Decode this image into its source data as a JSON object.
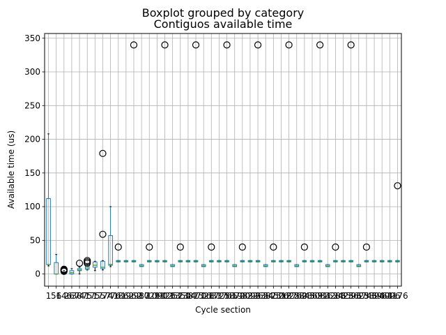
{
  "chart_data": {
    "type": "box",
    "suptitle": "Boxplot grouped by category",
    "title": "Contiguos available time",
    "xlabel": "Cycle section",
    "ylabel": "Available time (us)",
    "ylim": [
      -18,
      357
    ],
    "yticks": [
      0,
      50,
      100,
      150,
      200,
      250,
      300,
      350
    ],
    "grid": true,
    "categories": [
      "1",
      "56",
      "146",
      "267",
      "387",
      "417",
      "517",
      "557",
      "741",
      "761",
      "862",
      "962",
      "987",
      "1029",
      "1090",
      "1126",
      "1252",
      "1350",
      "1387",
      "1470",
      "1528",
      "1633",
      "1725",
      "1765",
      "1870",
      "1983",
      "2096",
      "2265",
      "2387",
      "2450",
      "2518",
      "2625",
      "2760",
      "2845",
      "2869",
      "3034",
      "3162",
      "3286",
      "3425",
      "3596",
      "3625",
      "3746",
      "3896",
      "3963",
      "4096",
      "4176"
    ],
    "boxes": [
      {
        "q1": 14,
        "median": 14,
        "q3": 112,
        "lo": 12,
        "hi": 208,
        "outliers": []
      },
      {
        "q1": 0,
        "median": 0,
        "q3": 17,
        "lo": 0,
        "hi": 29,
        "outliers": []
      },
      {
        "q1": 0,
        "median": 1,
        "q3": 3,
        "lo": 0,
        "hi": 5,
        "outliers": [
          4,
          5,
          6,
          7
        ]
      },
      {
        "q1": 0,
        "median": 2,
        "q3": 5,
        "lo": 0,
        "hi": 8,
        "outliers": []
      },
      {
        "q1": 5,
        "median": 6,
        "q3": 8,
        "lo": 0,
        "hi": 10,
        "outliers": [
          16
        ]
      },
      {
        "q1": 7,
        "median": 9,
        "q3": 12,
        "lo": 6,
        "hi": 14,
        "outliers": [
          16,
          18,
          20
        ]
      },
      {
        "q1": 10,
        "median": 13,
        "q3": 18,
        "lo": 5,
        "hi": 19,
        "outliers": []
      },
      {
        "q1": 8,
        "median": 10,
        "q3": 19,
        "lo": 6,
        "hi": 20,
        "outliers": [
          59,
          179
        ]
      },
      {
        "q1": 13,
        "median": 14,
        "q3": 57,
        "lo": 11,
        "hi": 100,
        "outliers": []
      },
      {
        "q1": 18,
        "median": 19,
        "q3": 20,
        "lo": 18,
        "hi": 20,
        "outliers": [
          40
        ]
      },
      {
        "q1": 18,
        "median": 19,
        "q3": 20,
        "lo": 18,
        "hi": 20,
        "outliers": []
      },
      {
        "q1": 18,
        "median": 19,
        "q3": 20,
        "lo": 18,
        "hi": 20,
        "outliers": [
          340
        ]
      },
      {
        "q1": 11,
        "median": 12,
        "q3": 14,
        "lo": 11,
        "hi": 14,
        "outliers": []
      },
      {
        "q1": 18,
        "median": 19,
        "q3": 20,
        "lo": 18,
        "hi": 20,
        "outliers": [
          40
        ]
      },
      {
        "q1": 18,
        "median": 19,
        "q3": 20,
        "lo": 18,
        "hi": 20,
        "outliers": []
      },
      {
        "q1": 18,
        "median": 19,
        "q3": 20,
        "lo": 18,
        "hi": 20,
        "outliers": [
          340
        ]
      },
      {
        "q1": 11,
        "median": 12,
        "q3": 14,
        "lo": 11,
        "hi": 14,
        "outliers": []
      },
      {
        "q1": 18,
        "median": 19,
        "q3": 20,
        "lo": 18,
        "hi": 20,
        "outliers": [
          40
        ]
      },
      {
        "q1": 18,
        "median": 19,
        "q3": 20,
        "lo": 18,
        "hi": 20,
        "outliers": []
      },
      {
        "q1": 18,
        "median": 19,
        "q3": 20,
        "lo": 18,
        "hi": 20,
        "outliers": [
          340
        ]
      },
      {
        "q1": 11,
        "median": 12,
        "q3": 14,
        "lo": 11,
        "hi": 14,
        "outliers": []
      },
      {
        "q1": 18,
        "median": 19,
        "q3": 20,
        "lo": 18,
        "hi": 20,
        "outliers": [
          40
        ]
      },
      {
        "q1": 18,
        "median": 19,
        "q3": 20,
        "lo": 18,
        "hi": 20,
        "outliers": []
      },
      {
        "q1": 18,
        "median": 19,
        "q3": 20,
        "lo": 18,
        "hi": 20,
        "outliers": [
          340
        ]
      },
      {
        "q1": 11,
        "median": 12,
        "q3": 14,
        "lo": 11,
        "hi": 14,
        "outliers": []
      },
      {
        "q1": 18,
        "median": 19,
        "q3": 20,
        "lo": 18,
        "hi": 20,
        "outliers": [
          40
        ]
      },
      {
        "q1": 18,
        "median": 19,
        "q3": 20,
        "lo": 18,
        "hi": 20,
        "outliers": []
      },
      {
        "q1": 18,
        "median": 19,
        "q3": 20,
        "lo": 18,
        "hi": 20,
        "outliers": [
          340
        ]
      },
      {
        "q1": 11,
        "median": 12,
        "q3": 14,
        "lo": 11,
        "hi": 14,
        "outliers": []
      },
      {
        "q1": 18,
        "median": 19,
        "q3": 20,
        "lo": 18,
        "hi": 20,
        "outliers": [
          40
        ]
      },
      {
        "q1": 18,
        "median": 19,
        "q3": 20,
        "lo": 18,
        "hi": 20,
        "outliers": []
      },
      {
        "q1": 18,
        "median": 19,
        "q3": 20,
        "lo": 18,
        "hi": 20,
        "outliers": [
          340
        ]
      },
      {
        "q1": 11,
        "median": 12,
        "q3": 14,
        "lo": 11,
        "hi": 14,
        "outliers": []
      },
      {
        "q1": 18,
        "median": 19,
        "q3": 20,
        "lo": 18,
        "hi": 20,
        "outliers": [
          40
        ]
      },
      {
        "q1": 18,
        "median": 19,
        "q3": 20,
        "lo": 18,
        "hi": 20,
        "outliers": []
      },
      {
        "q1": 18,
        "median": 19,
        "q3": 20,
        "lo": 18,
        "hi": 20,
        "outliers": [
          340
        ]
      },
      {
        "q1": 11,
        "median": 12,
        "q3": 14,
        "lo": 11,
        "hi": 14,
        "outliers": []
      },
      {
        "q1": 18,
        "median": 19,
        "q3": 20,
        "lo": 18,
        "hi": 20,
        "outliers": [
          40
        ]
      },
      {
        "q1": 18,
        "median": 19,
        "q3": 20,
        "lo": 18,
        "hi": 20,
        "outliers": []
      },
      {
        "q1": 18,
        "median": 19,
        "q3": 20,
        "lo": 18,
        "hi": 20,
        "outliers": [
          340
        ]
      },
      {
        "q1": 11,
        "median": 12,
        "q3": 14,
        "lo": 11,
        "hi": 14,
        "outliers": []
      },
      {
        "q1": 18,
        "median": 19,
        "q3": 20,
        "lo": 18,
        "hi": 20,
        "outliers": [
          40
        ]
      },
      {
        "q1": 18,
        "median": 19,
        "q3": 20,
        "lo": 18,
        "hi": 20,
        "outliers": []
      },
      {
        "q1": 18,
        "median": 19,
        "q3": 20,
        "lo": 18,
        "hi": 20,
        "outliers": []
      },
      {
        "q1": 18,
        "median": 19,
        "q3": 20,
        "lo": 18,
        "hi": 20,
        "outliers": []
      },
      {
        "q1": 18,
        "median": 19,
        "q3": 20,
        "lo": 18,
        "hi": 20,
        "outliers": [
          131
        ]
      }
    ]
  }
}
